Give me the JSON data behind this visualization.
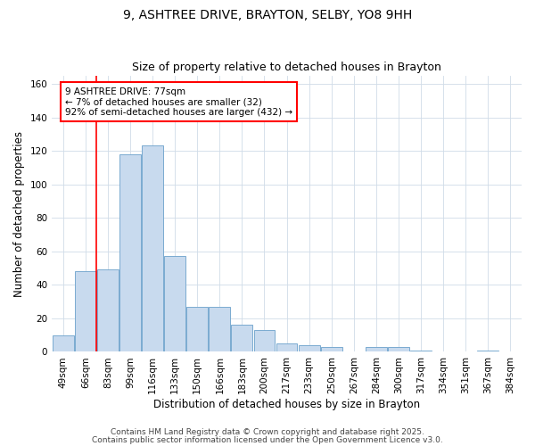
{
  "title": "9, ASHTREE DRIVE, BRAYTON, SELBY, YO8 9HH",
  "subtitle": "Size of property relative to detached houses in Brayton",
  "xlabel": "Distribution of detached houses by size in Brayton",
  "ylabel": "Number of detached properties",
  "bar_color": "#c8daee",
  "bar_edge_color": "#7aaad0",
  "categories": [
    "49sqm",
    "66sqm",
    "83sqm",
    "99sqm",
    "116sqm",
    "133sqm",
    "150sqm",
    "166sqm",
    "183sqm",
    "200sqm",
    "217sqm",
    "233sqm",
    "250sqm",
    "267sqm",
    "284sqm",
    "300sqm",
    "317sqm",
    "334sqm",
    "351sqm",
    "367sqm",
    "384sqm"
  ],
  "values": [
    10,
    48,
    49,
    118,
    123,
    57,
    27,
    27,
    16,
    13,
    5,
    4,
    3,
    0,
    3,
    3,
    1,
    0,
    0,
    1,
    0
  ],
  "ylim": [
    0,
    165
  ],
  "yticks": [
    0,
    20,
    40,
    60,
    80,
    100,
    120,
    140,
    160
  ],
  "red_line_x": 1.5,
  "annotation_line1": "9 ASHTREE DRIVE: 77sqm",
  "annotation_line2": "← 7% of detached houses are smaller (32)",
  "annotation_line3": "92% of semi-detached houses are larger (432) →",
  "footer_line1": "Contains HM Land Registry data © Crown copyright and database right 2025.",
  "footer_line2": "Contains public sector information licensed under the Open Government Licence v3.0.",
  "background_color": "#ffffff",
  "grid_color": "#d0dce8",
  "title_fontsize": 10,
  "subtitle_fontsize": 9,
  "tick_fontsize": 7.5,
  "ylabel_fontsize": 8.5,
  "xlabel_fontsize": 8.5,
  "footer_fontsize": 6.5
}
